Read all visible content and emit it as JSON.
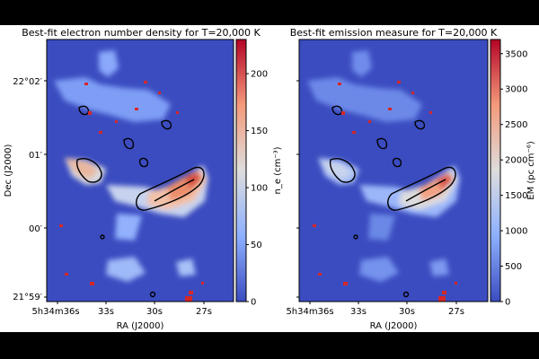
{
  "chart_data": [
    {
      "type": "heatmap",
      "title": "Best-fit electron number density for T=20,000 K",
      "xlabel": "RA (J2000)",
      "ylabel": "Dec (J2000)",
      "x_ticks": [
        "5h34m36s",
        "33s",
        "30s",
        "27s"
      ],
      "y_ticks": [
        "22°02′",
        "01′",
        "00′",
        "21°59′"
      ],
      "colorbar_label": "n_e (cm⁻³)",
      "colorbar_ticks": [
        0,
        50,
        100,
        150,
        200
      ],
      "colorbar_range": [
        0,
        230
      ],
      "colormap": "coolwarm",
      "peak_value": 230,
      "background_value": 0
    },
    {
      "type": "heatmap",
      "title": "Best-fit emission measure for T=20,000 K",
      "xlabel": "RA (J2000)",
      "ylabel": "",
      "x_ticks": [
        "5h34m36s",
        "33s",
        "30s",
        "27s"
      ],
      "y_ticks": [],
      "colorbar_label": "EM (pc cm⁻⁶)",
      "colorbar_ticks": [
        0,
        500,
        1000,
        1500,
        2000,
        2500,
        3000,
        3500
      ],
      "colorbar_range": [
        0,
        3700
      ],
      "colormap": "coolwarm",
      "peak_value": 3700,
      "background_value": 0
    }
  ],
  "colors": {
    "low": "#3b4cc0",
    "mid": "#dddddd",
    "high": "#b40426",
    "contour": "#000000",
    "marker": "#d62728"
  }
}
